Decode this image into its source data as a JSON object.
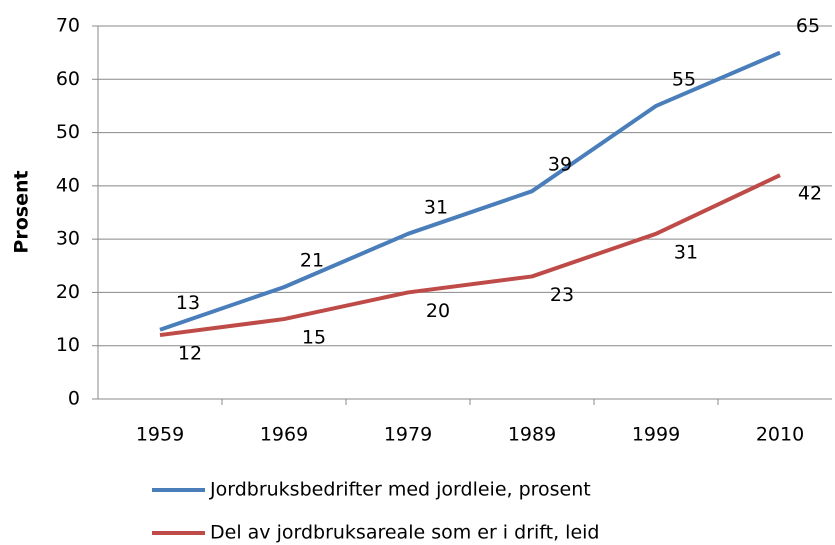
{
  "chart_data": {
    "type": "line",
    "y_label": "Prosent",
    "categories": [
      "1959",
      "1969",
      "1979",
      "1989",
      "1999",
      "2010"
    ],
    "series": [
      {
        "name": "Jordbruksbedrifter med jordleie, prosent",
        "color": "#4a7ebb",
        "values": [
          13,
          21,
          31,
          39,
          55,
          65
        ]
      },
      {
        "name": "Del av jordbruksareale som er i drift, leid",
        "color": "#be4b48",
        "values": [
          12,
          15,
          20,
          23,
          31,
          42
        ]
      }
    ],
    "ylim": [
      0,
      70
    ],
    "yticks": [
      0,
      10,
      20,
      30,
      40,
      50,
      60,
      70
    ],
    "grid": true,
    "legend": "bottom"
  }
}
